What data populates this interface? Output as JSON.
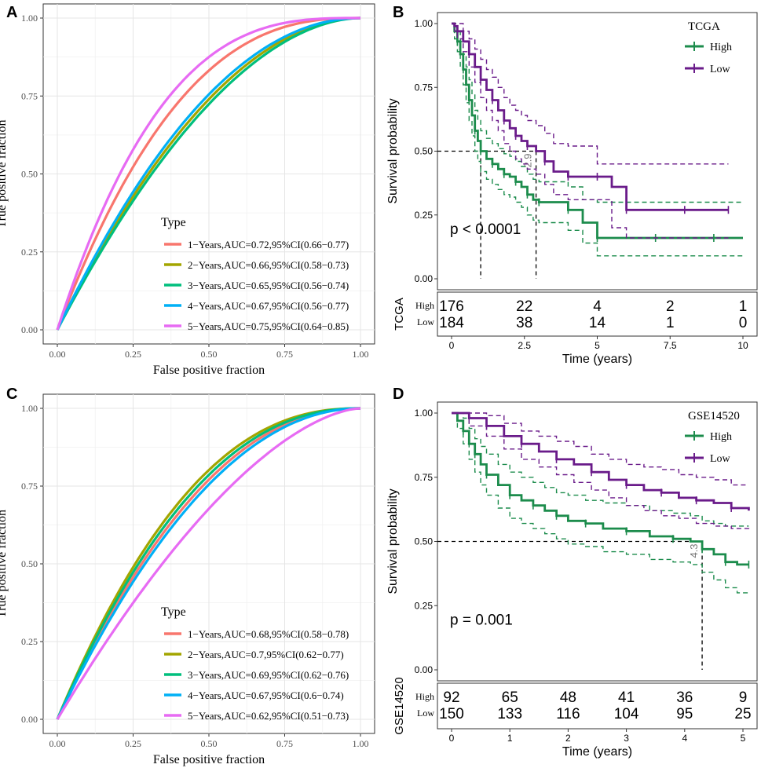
{
  "colors": {
    "y1": "#F8766D",
    "y2": "#A3A500",
    "y3": "#00BF7D",
    "y4": "#00B0F6",
    "y5": "#E76BF3",
    "high": "#1C8C4C",
    "low": "#6A1B8A",
    "grid": "#E5E5E5",
    "panel_border": "#333333"
  },
  "chart_data": [
    {
      "panel": "A",
      "type": "line",
      "subtype": "roc",
      "xlabel": "False positive fraction",
      "ylabel": "True positive fraction",
      "xlim": [
        0,
        1
      ],
      "ylim": [
        0,
        1
      ],
      "x_ticks": [
        "0.00",
        "0.25",
        "0.50",
        "0.75",
        "1.00"
      ],
      "y_ticks": [
        "0.00",
        "0.25",
        "0.50",
        "0.75",
        "1.00"
      ],
      "legend_title": "Type",
      "series": [
        {
          "name": "1−Years,AUC=0.72,95%CI(0.66−0.77)",
          "auc": 0.72,
          "color": "y1"
        },
        {
          "name": "2−Years,AUC=0.66,95%CI(0.58−0.73)",
          "auc": 0.66,
          "color": "y2"
        },
        {
          "name": "3−Years,AUC=0.65,95%CI(0.56−0.74)",
          "auc": 0.65,
          "color": "y3"
        },
        {
          "name": "4−Years,AUC=0.67,95%CI(0.56−0.77)",
          "auc": 0.67,
          "color": "y4"
        },
        {
          "name": "5−Years,AUC=0.75,95%CI(0.64−0.85)",
          "auc": 0.75,
          "color": "y5"
        }
      ]
    },
    {
      "panel": "B",
      "type": "line",
      "subtype": "kaplan-meier",
      "legend_title": "TCGA",
      "xlabel": "Time (years)",
      "ylabel": "Survival probability",
      "xlim": [
        0,
        10
      ],
      "ylim": [
        0,
        1
      ],
      "x_ticks": [
        "0",
        "2.5",
        "5",
        "7.5",
        "10"
      ],
      "y_ticks": [
        "0.00",
        "0.25",
        "0.50",
        "0.75",
        "1.00"
      ],
      "pvalue": "p < 0.0001",
      "median_high": 1.0,
      "median_low": 2.9,
      "median_label": "2.9",
      "series": [
        {
          "name": "High",
          "color": "high",
          "x": [
            0,
            0.1,
            0.2,
            0.3,
            0.4,
            0.5,
            0.6,
            0.7,
            0.8,
            0.9,
            1.0,
            1.2,
            1.4,
            1.6,
            1.8,
            2.0,
            2.2,
            2.4,
            2.6,
            2.8,
            3.0,
            3.5,
            4.0,
            4.5,
            5.0,
            6.0,
            7.0,
            8.0,
            9.0,
            10.0
          ],
          "y": [
            1.0,
            0.97,
            0.93,
            0.88,
            0.82,
            0.76,
            0.7,
            0.64,
            0.58,
            0.54,
            0.5,
            0.47,
            0.45,
            0.43,
            0.41,
            0.4,
            0.38,
            0.36,
            0.33,
            0.31,
            0.3,
            0.3,
            0.27,
            0.22,
            0.16,
            0.16,
            0.16,
            0.16,
            0.16,
            0.16
          ],
          "upper": [
            1.0,
            1.0,
            0.97,
            0.93,
            0.88,
            0.83,
            0.78,
            0.72,
            0.66,
            0.62,
            0.58,
            0.55,
            0.53,
            0.51,
            0.49,
            0.48,
            0.46,
            0.44,
            0.41,
            0.39,
            0.38,
            0.38,
            0.36,
            0.31,
            0.3,
            0.3,
            0.3,
            0.3,
            0.3,
            0.3
          ],
          "lower": [
            1.0,
            0.94,
            0.89,
            0.83,
            0.76,
            0.69,
            0.62,
            0.56,
            0.5,
            0.46,
            0.42,
            0.39,
            0.37,
            0.35,
            0.33,
            0.32,
            0.3,
            0.28,
            0.25,
            0.23,
            0.22,
            0.22,
            0.19,
            0.14,
            0.09,
            0.09,
            0.09,
            0.09,
            0.09,
            0.09
          ]
        },
        {
          "name": "Low",
          "color": "low",
          "x": [
            0,
            0.1,
            0.2,
            0.4,
            0.6,
            0.8,
            1.0,
            1.2,
            1.4,
            1.6,
            1.8,
            2.0,
            2.2,
            2.4,
            2.6,
            2.9,
            3.2,
            3.5,
            4.0,
            4.5,
            5.0,
            5.5,
            6.0,
            7.0,
            8.0,
            9.0,
            9.5
          ],
          "y": [
            1.0,
            0.99,
            0.97,
            0.93,
            0.88,
            0.83,
            0.78,
            0.74,
            0.7,
            0.66,
            0.62,
            0.59,
            0.56,
            0.54,
            0.52,
            0.5,
            0.46,
            0.42,
            0.4,
            0.4,
            0.4,
            0.36,
            0.27,
            0.27,
            0.27,
            0.27,
            0.27
          ],
          "upper": [
            1.0,
            1.0,
            1.0,
            0.97,
            0.94,
            0.9,
            0.86,
            0.82,
            0.79,
            0.75,
            0.71,
            0.68,
            0.66,
            0.64,
            0.62,
            0.6,
            0.57,
            0.53,
            0.52,
            0.52,
            0.45,
            0.45,
            0.45,
            0.45,
            0.45,
            0.45,
            0.45
          ],
          "lower": [
            1.0,
            0.97,
            0.94,
            0.89,
            0.83,
            0.77,
            0.71,
            0.66,
            0.62,
            0.58,
            0.53,
            0.5,
            0.47,
            0.45,
            0.43,
            0.41,
            0.37,
            0.33,
            0.31,
            0.31,
            0.31,
            0.2,
            0.16,
            0.16,
            0.16,
            0.16,
            0.16
          ]
        }
      ],
      "risk_table": {
        "title": "TCGA",
        "times": [
          0,
          2.5,
          5,
          7.5,
          10
        ],
        "rows": [
          {
            "label": "High",
            "counts": [
              "176",
              "22",
              "4",
              "2",
              "1"
            ]
          },
          {
            "label": "Low",
            "counts": [
              "184",
              "38",
              "14",
              "1",
              "0"
            ]
          }
        ]
      }
    },
    {
      "panel": "C",
      "type": "line",
      "subtype": "roc",
      "xlabel": "False positive fraction",
      "ylabel": "True positive fraction",
      "xlim": [
        0,
        1
      ],
      "ylim": [
        0,
        1
      ],
      "x_ticks": [
        "0.00",
        "0.25",
        "0.50",
        "0.75",
        "1.00"
      ],
      "y_ticks": [
        "0.00",
        "0.25",
        "0.50",
        "0.75",
        "1.00"
      ],
      "legend_title": "Type",
      "series": [
        {
          "name": "1−Years,AUC=0.68,95%CI(0.58−0.78)",
          "auc": 0.68,
          "color": "y1"
        },
        {
          "name": "2−Years,AUC=0.7,95%CI(0.62−0.77)",
          "auc": 0.7,
          "color": "y2"
        },
        {
          "name": "3−Years,AUC=0.69,95%CI(0.62−0.76)",
          "auc": 0.69,
          "color": "y3"
        },
        {
          "name": "4−Years,AUC=0.67,95%CI(0.6−0.74)",
          "auc": 0.67,
          "color": "y4"
        },
        {
          "name": "5−Years,AUC=0.62,95%CI(0.51−0.73)",
          "auc": 0.62,
          "color": "y5"
        }
      ]
    },
    {
      "panel": "D",
      "type": "line",
      "subtype": "kaplan-meier",
      "legend_title": "GSE14520",
      "xlabel": "Time (years)",
      "ylabel": "Survival probability",
      "xlim": [
        0,
        5
      ],
      "ylim": [
        0,
        1
      ],
      "x_ticks": [
        "0",
        "1",
        "2",
        "3",
        "4",
        "5"
      ],
      "y_ticks": [
        "0.00",
        "0.25",
        "0.50",
        "0.75",
        "1.00"
      ],
      "pvalue": "p = 0.001",
      "median_high": 4.3,
      "median_label": "4.3",
      "series": [
        {
          "name": "High",
          "color": "high",
          "x": [
            0,
            0.1,
            0.2,
            0.3,
            0.4,
            0.5,
            0.6,
            0.8,
            1.0,
            1.2,
            1.4,
            1.6,
            1.8,
            2.0,
            2.3,
            2.6,
            3.0,
            3.4,
            3.8,
            4.1,
            4.3,
            4.5,
            4.7,
            4.9,
            5.1
          ],
          "y": [
            1.0,
            0.97,
            0.93,
            0.88,
            0.84,
            0.8,
            0.76,
            0.72,
            0.68,
            0.66,
            0.64,
            0.62,
            0.6,
            0.58,
            0.57,
            0.55,
            0.54,
            0.52,
            0.51,
            0.5,
            0.47,
            0.45,
            0.42,
            0.41,
            0.41
          ],
          "upper": [
            1.0,
            1.0,
            0.98,
            0.94,
            0.9,
            0.87,
            0.84,
            0.8,
            0.77,
            0.75,
            0.73,
            0.71,
            0.69,
            0.68,
            0.66,
            0.65,
            0.64,
            0.62,
            0.61,
            0.6,
            0.58,
            0.57,
            0.56,
            0.56,
            0.56
          ],
          "lower": [
            1.0,
            0.94,
            0.88,
            0.82,
            0.77,
            0.72,
            0.68,
            0.63,
            0.59,
            0.57,
            0.55,
            0.53,
            0.51,
            0.49,
            0.48,
            0.46,
            0.45,
            0.43,
            0.42,
            0.41,
            0.38,
            0.35,
            0.32,
            0.3,
            0.3
          ]
        },
        {
          "name": "Low",
          "color": "low",
          "x": [
            0,
            0.3,
            0.6,
            0.9,
            1.2,
            1.5,
            1.8,
            2.1,
            2.4,
            2.7,
            3.0,
            3.3,
            3.6,
            3.9,
            4.2,
            4.5,
            4.8,
            5.1
          ],
          "y": [
            1.0,
            0.98,
            0.95,
            0.91,
            0.88,
            0.85,
            0.82,
            0.8,
            0.77,
            0.74,
            0.72,
            0.7,
            0.69,
            0.67,
            0.66,
            0.65,
            0.63,
            0.62
          ],
          "upper": [
            1.0,
            1.0,
            0.99,
            0.96,
            0.93,
            0.91,
            0.89,
            0.87,
            0.84,
            0.82,
            0.8,
            0.79,
            0.78,
            0.76,
            0.75,
            0.74,
            0.72,
            0.72
          ],
          "lower": [
            1.0,
            0.95,
            0.91,
            0.86,
            0.82,
            0.79,
            0.76,
            0.73,
            0.7,
            0.67,
            0.64,
            0.62,
            0.6,
            0.59,
            0.57,
            0.56,
            0.55,
            0.54
          ]
        }
      ],
      "risk_table": {
        "title": "GSE14520",
        "times": [
          0,
          1,
          2,
          3,
          4,
          5
        ],
        "rows": [
          {
            "label": "High",
            "counts": [
              "92",
              "65",
              "48",
              "41",
              "36",
              "9"
            ]
          },
          {
            "label": "Low",
            "counts": [
              "150",
              "133",
              "116",
              "104",
              "95",
              "25"
            ]
          }
        ]
      }
    }
  ],
  "panel_letters": [
    "A",
    "B",
    "C",
    "D"
  ]
}
